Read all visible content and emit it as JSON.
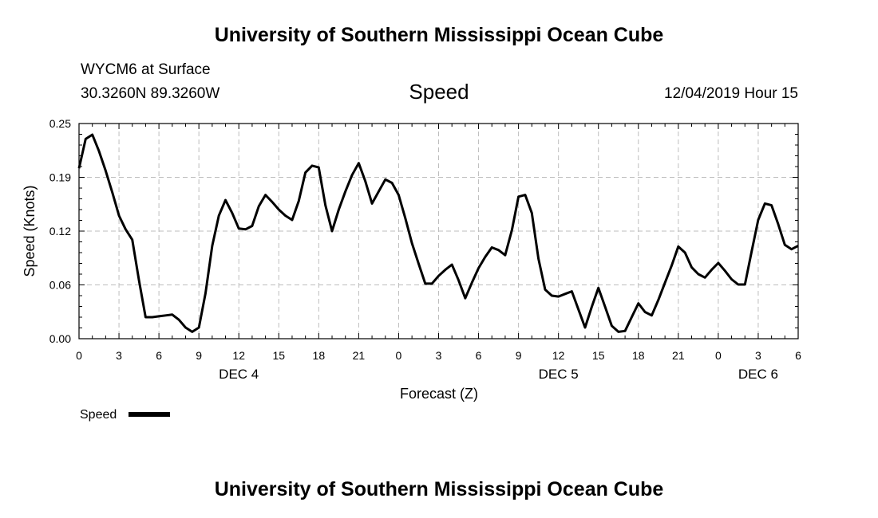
{
  "page": {
    "title_top": "University of Southern Mississippi Ocean Cube",
    "title_bottom": "University of Southern Mississippi Ocean Cube",
    "station": "WYCM6 at Surface",
    "location": "30.3260N 89.3260W",
    "variable": "Speed",
    "datetime": "12/04/2019 Hour 15"
  },
  "chart_data": {
    "type": "line",
    "xlabel": "Forecast (Z)",
    "ylabel": "Speed (Knots)",
    "ylim": [
      0,
      0.25
    ],
    "xlim": [
      0,
      54
    ],
    "y_ticks": [
      "0.00",
      "0.06",
      "0.12",
      "0.19",
      "0.25"
    ],
    "x_ticks": [
      "0",
      "3",
      "6",
      "9",
      "12",
      "15",
      "18",
      "21",
      "0",
      "3",
      "6",
      "9",
      "12",
      "15",
      "18",
      "21",
      "0",
      "3",
      "6"
    ],
    "day_labels": [
      {
        "text": "DEC 4",
        "hour": 12
      },
      {
        "text": "DEC 5",
        "hour": 36
      },
      {
        "text": "DEC 6",
        "hour": 51
      }
    ],
    "grid": true,
    "legend": {
      "label": "Speed",
      "placement": "bottom-left"
    },
    "series": [
      {
        "name": "Speed",
        "color": "#000000",
        "x": [
          0,
          0.5,
          1,
          1.5,
          2,
          2.5,
          3,
          3.5,
          4,
          4.5,
          5,
          5.5,
          6,
          6.5,
          7,
          7.5,
          8,
          8.5,
          9,
          9.5,
          10,
          10.5,
          11,
          11.5,
          12,
          12.5,
          13,
          13.5,
          14,
          14.5,
          15,
          15.5,
          16,
          16.5,
          17,
          17.5,
          18,
          18.5,
          19,
          19.5,
          20,
          20.5,
          21,
          21.5,
          22,
          22.5,
          23,
          23.5,
          24,
          24.5,
          25,
          25.5,
          26,
          26.5,
          27,
          27.5,
          28,
          28.5,
          29,
          29.5,
          30,
          30.5,
          31,
          31.5,
          32,
          32.5,
          33,
          33.5,
          34,
          34.5,
          35,
          35.5,
          36,
          36.5,
          37,
          37.5,
          38,
          38.5,
          39,
          39.5,
          40,
          40.5,
          41,
          41.5,
          42,
          42.5,
          43,
          43.5,
          44,
          44.5,
          45,
          45.5,
          46,
          46.5,
          47,
          47.5,
          48,
          48.5,
          49,
          49.5,
          50,
          50.5,
          51,
          51.5,
          52,
          52.5,
          53,
          53.5,
          54
        ],
        "y": [
          0.198,
          0.232,
          0.237,
          0.218,
          0.195,
          0.17,
          0.143,
          0.127,
          0.115,
          0.068,
          0.025,
          0.025,
          0.026,
          0.027,
          0.028,
          0.022,
          0.013,
          0.008,
          0.013,
          0.053,
          0.108,
          0.143,
          0.161,
          0.146,
          0.128,
          0.127,
          0.131,
          0.154,
          0.167,
          0.159,
          0.15,
          0.143,
          0.138,
          0.16,
          0.193,
          0.201,
          0.199,
          0.155,
          0.125,
          0.15,
          0.171,
          0.19,
          0.204,
          0.183,
          0.157,
          0.171,
          0.185,
          0.181,
          0.167,
          0.14,
          0.111,
          0.087,
          0.064,
          0.064,
          0.073,
          0.08,
          0.086,
          0.068,
          0.047,
          0.065,
          0.082,
          0.095,
          0.106,
          0.103,
          0.097,
          0.126,
          0.165,
          0.167,
          0.146,
          0.093,
          0.057,
          0.05,
          0.049,
          0.052,
          0.055,
          0.034,
          0.013,
          0.037,
          0.059,
          0.037,
          0.015,
          0.008,
          0.009,
          0.025,
          0.041,
          0.031,
          0.027,
          0.045,
          0.065,
          0.085,
          0.107,
          0.1,
          0.083,
          0.075,
          0.071,
          0.08,
          0.088,
          0.079,
          0.069,
          0.063,
          0.063,
          0.101,
          0.138,
          0.157,
          0.155,
          0.133,
          0.109,
          0.104,
          0.108
        ]
      }
    ]
  }
}
